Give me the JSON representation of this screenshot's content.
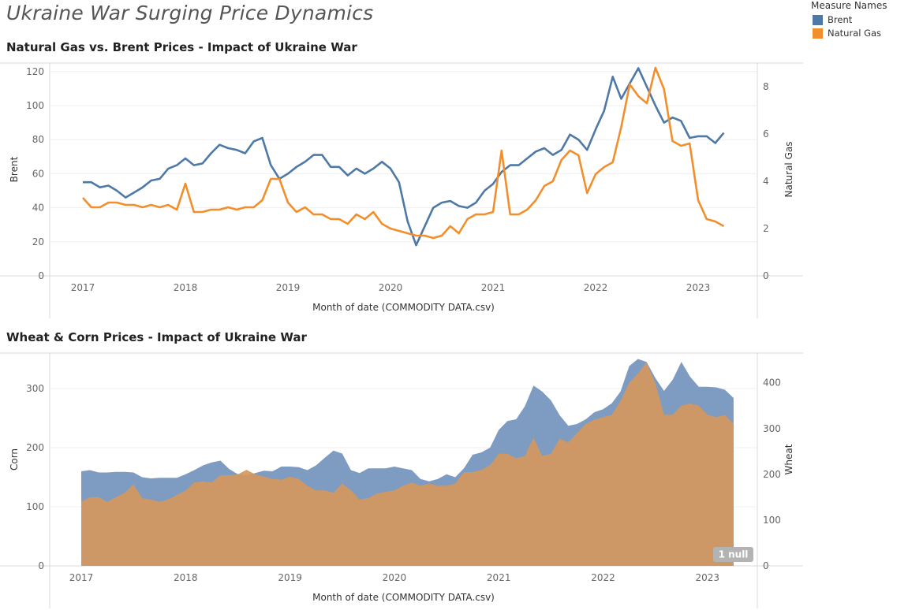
{
  "dashboard": {
    "title": "Ukraine War Surging Price Dynamics"
  },
  "legend": {
    "title": "Measure Names",
    "items": [
      {
        "label": "Brent",
        "color": "#4e79a7"
      },
      {
        "label": "Natural Gas",
        "color": "#f28e2b"
      }
    ]
  },
  "chart_data": [
    {
      "type": "line",
      "title": "Natural Gas vs. Brent Prices - Impact of Ukraine War",
      "xlabel": "Month of date (COMMODITY DATA.csv)",
      "ylabel_left": "Brent",
      "ylabel_right": "Natural Gas",
      "x_ticks": [
        "2017",
        "2018",
        "2019",
        "2020",
        "2021",
        "2022",
        "2023"
      ],
      "yleft_ticks": [
        0,
        20,
        40,
        60,
        80,
        100,
        120
      ],
      "yright_ticks": [
        0,
        2,
        4,
        6,
        8
      ],
      "ylim_left": [
        0,
        125
      ],
      "ylim_right": [
        0,
        9
      ],
      "start": "2017-01",
      "grid": true,
      "series": [
        {
          "name": "Brent",
          "axis": "left",
          "color": "#4e79a7",
          "values": [
            55,
            55,
            52,
            53,
            50,
            46,
            49,
            52,
            56,
            57,
            63,
            65,
            69,
            65,
            66,
            72,
            77,
            75,
            74,
            72,
            79,
            81,
            65,
            57,
            60,
            64,
            67,
            71,
            71,
            64,
            64,
            59,
            63,
            60,
            63,
            67,
            63,
            55,
            32,
            18,
            29,
            40,
            43,
            44,
            41,
            40,
            43,
            50,
            54,
            61,
            65,
            65,
            69,
            73,
            75,
            71,
            74,
            83,
            80,
            74,
            86,
            97,
            117,
            104,
            113,
            122,
            111,
            100,
            90,
            93,
            91,
            81,
            82,
            82,
            78,
            84
          ]
        },
        {
          "name": "Natural Gas",
          "axis": "right",
          "color": "#f28e2b",
          "values": [
            3.3,
            2.9,
            2.9,
            3.1,
            3.1,
            3.0,
            3.0,
            2.9,
            3.0,
            2.9,
            3.0,
            2.8,
            3.9,
            2.7,
            2.7,
            2.8,
            2.8,
            2.9,
            2.8,
            2.9,
            2.9,
            3.2,
            4.1,
            4.1,
            3.1,
            2.7,
            2.9,
            2.6,
            2.6,
            2.4,
            2.4,
            2.2,
            2.6,
            2.4,
            2.7,
            2.2,
            2.0,
            1.9,
            1.8,
            1.7,
            1.7,
            1.6,
            1.7,
            2.1,
            1.8,
            2.4,
            2.6,
            2.6,
            2.7,
            5.3,
            2.6,
            2.6,
            2.8,
            3.2,
            3.8,
            4.0,
            4.9,
            5.3,
            5.1,
            3.5,
            4.3,
            4.6,
            4.8,
            6.3,
            8.1,
            7.6,
            7.3,
            8.8,
            7.9,
            5.7,
            5.5,
            5.6,
            3.2,
            2.4,
            2.3,
            2.1
          ]
        }
      ]
    },
    {
      "type": "area",
      "title": "Wheat & Corn Prices - Impact of Ukraine War",
      "xlabel": "Month of date (COMMODITY DATA.csv)",
      "ylabel_left": "Corn",
      "ylabel_right": "Wheat",
      "x_ticks": [
        "2017",
        "2018",
        "2019",
        "2020",
        "2021",
        "2022",
        "2023"
      ],
      "yleft_ticks": [
        0,
        100,
        200,
        300
      ],
      "yright_ticks": [
        0,
        100,
        200,
        300,
        400
      ],
      "ylim_left": [
        0,
        360
      ],
      "ylim_right": [
        0,
        465
      ],
      "start": "2017-01",
      "grid": true,
      "annotation": "1 null",
      "series": [
        {
          "name": "Corn",
          "axis": "left",
          "color": "#7394bc",
          "values": [
            160,
            162,
            158,
            158,
            159,
            159,
            158,
            150,
            148,
            149,
            149,
            149,
            155,
            162,
            170,
            175,
            178,
            164,
            155,
            153,
            157,
            161,
            160,
            168,
            168,
            167,
            162,
            170,
            183,
            195,
            190,
            162,
            157,
            165,
            165,
            165,
            168,
            165,
            162,
            147,
            143,
            147,
            155,
            150,
            165,
            188,
            192,
            200,
            230,
            245,
            248,
            270,
            305,
            295,
            280,
            255,
            237,
            240,
            248,
            260,
            265,
            275,
            295,
            338,
            350,
            345,
            318,
            296,
            315,
            345,
            320,
            303,
            303,
            302,
            298,
            284
          ]
        },
        {
          "name": "Wheat",
          "axis": "right",
          "color": "#d4975e",
          "values": [
            140,
            150,
            150,
            140,
            150,
            160,
            178,
            148,
            145,
            140,
            145,
            155,
            165,
            182,
            185,
            182,
            198,
            198,
            200,
            210,
            200,
            195,
            190,
            188,
            195,
            190,
            175,
            165,
            165,
            160,
            180,
            165,
            145,
            148,
            158,
            162,
            165,
            175,
            182,
            175,
            180,
            175,
            175,
            180,
            205,
            205,
            210,
            220,
            245,
            245,
            235,
            240,
            280,
            240,
            245,
            278,
            270,
            290,
            310,
            320,
            325,
            330,
            360,
            400,
            420,
            445,
            400,
            330,
            330,
            350,
            355,
            350,
            330,
            325,
            330,
            310
          ]
        }
      ]
    }
  ]
}
